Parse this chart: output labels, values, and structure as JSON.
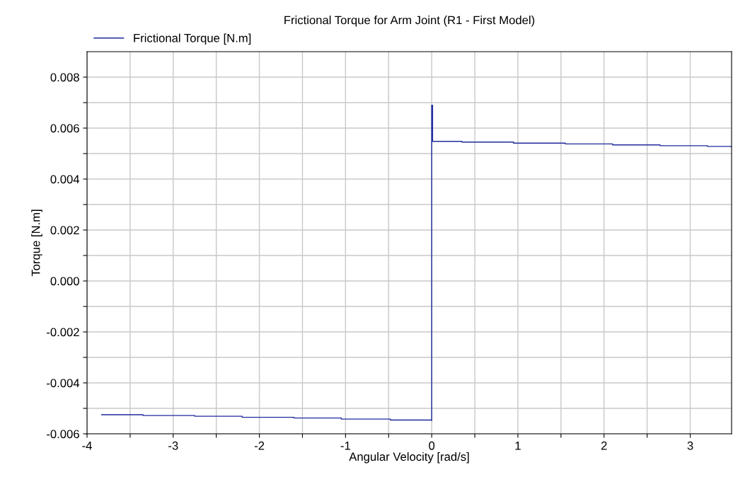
{
  "chart_data": {
    "type": "step",
    "title": "Frictional Torque for Arm Joint (R1 - First Model)",
    "xlabel": "Angular Velocity [rad/s]",
    "ylabel": "Torque [N.m]",
    "series": [
      {
        "name": "Frictional Torque [N.m]",
        "color": "#1f2a9c",
        "x": [
          -3.83,
          -3.35,
          -2.75,
          -2.2,
          -1.6,
          -1.05,
          -0.48,
          0,
          0,
          0.01,
          0.35,
          0.95,
          1.55,
          2.1,
          2.65,
          3.2,
          3.48
        ],
        "values": [
          -0.00525,
          -0.00528,
          -0.00531,
          -0.00535,
          -0.00538,
          -0.00542,
          -0.00546,
          -0.00548,
          0.0069,
          0.00548,
          0.00545,
          0.00541,
          0.00538,
          0.00534,
          0.00531,
          0.00528,
          0.00525
        ]
      }
    ],
    "xlim": [
      -4,
      3.48
    ],
    "ylim": [
      -0.006,
      0.009
    ],
    "xticks": [
      -4,
      {
        "value": -3.5,
        "label": null
      },
      -3,
      {
        "value": -2.5,
        "label": null
      },
      -2,
      {
        "value": -1.5,
        "label": null
      },
      -1,
      {
        "value": -0.5,
        "label": null
      },
      0,
      {
        "value": 0.5,
        "label": null
      },
      1,
      {
        "value": 1.5,
        "label": null
      },
      2,
      {
        "value": 2.5,
        "label": null
      },
      3
    ],
    "yticks": [
      {
        "value": -0.006,
        "label": "-0.006"
      },
      {
        "value": -0.005,
        "label": null
      },
      {
        "value": -0.004,
        "label": "-0.004"
      },
      {
        "value": -0.003,
        "label": null
      },
      {
        "value": -0.002,
        "label": "-0.002"
      },
      {
        "value": -0.001,
        "label": null
      },
      {
        "value": 0,
        "label": "0.000"
      },
      {
        "value": 0.001,
        "label": null
      },
      {
        "value": 0.002,
        "label": "0.002"
      },
      {
        "value": 0.003,
        "label": null
      },
      {
        "value": 0.004,
        "label": "0.004"
      },
      {
        "value": 0.005,
        "label": null
      },
      {
        "value": 0.006,
        "label": "0.006"
      },
      {
        "value": 0.007,
        "label": null
      },
      {
        "value": 0.008,
        "label": "0.008"
      }
    ],
    "grid": true,
    "legend": "top left"
  }
}
